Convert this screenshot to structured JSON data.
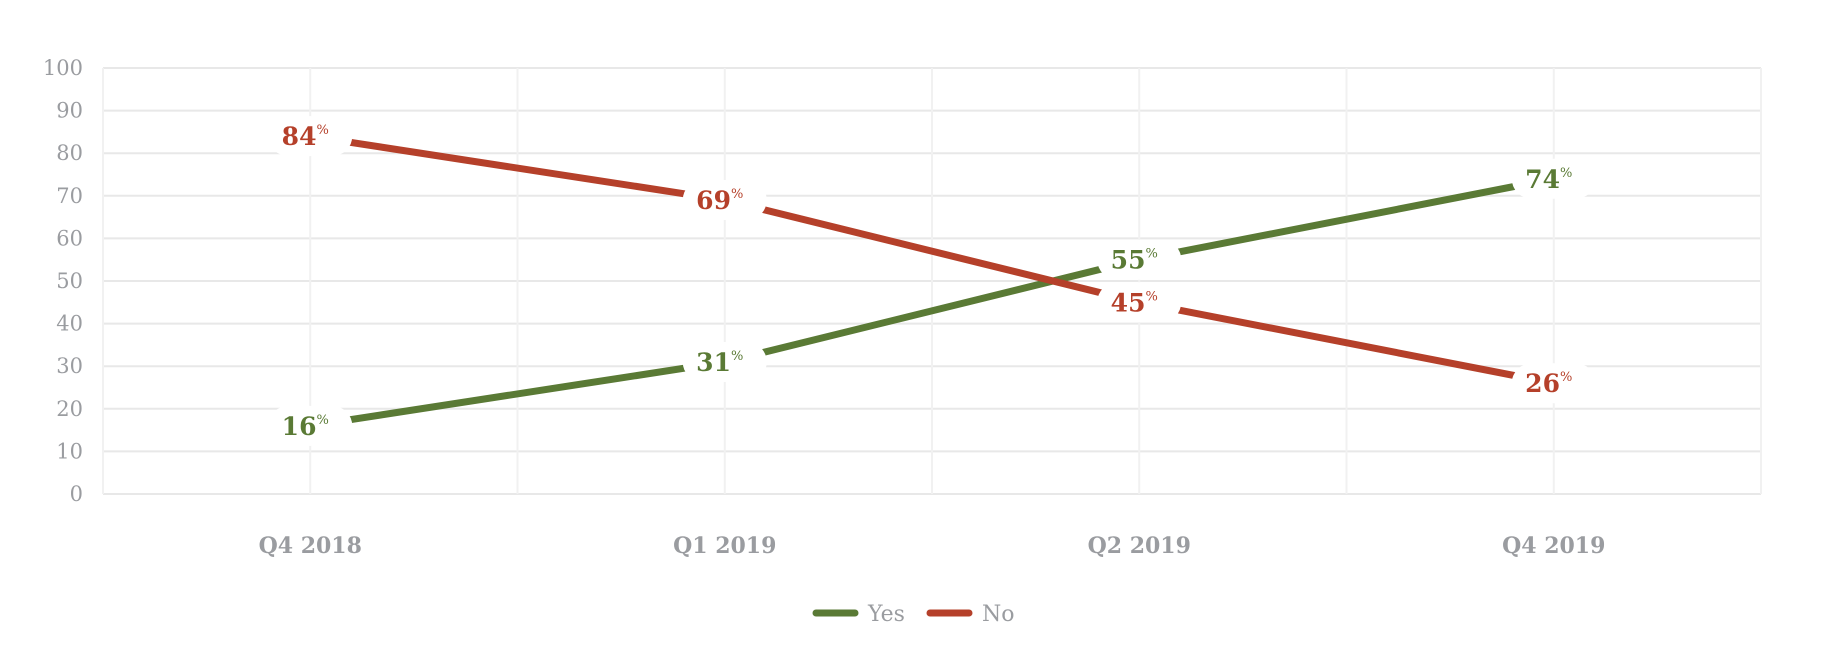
{
  "chart_data": {
    "type": "line",
    "title": "",
    "xlabel": "",
    "ylabel": "",
    "categories": [
      "Q4 2018",
      "Q1 2019",
      "Q2 2019",
      "Q4 2019"
    ],
    "ylim": [
      0,
      100
    ],
    "yticks": [
      0,
      10,
      20,
      30,
      40,
      50,
      60,
      70,
      80,
      90,
      100
    ],
    "grid": true,
    "legend_position": "bottom-center",
    "value_suffix": "%",
    "series": [
      {
        "name": "Yes",
        "color": "#5a7a35",
        "values": [
          16,
          31,
          55,
          74
        ]
      },
      {
        "name": "No",
        "color": "#b5402a",
        "values": [
          84,
          69,
          45,
          26
        ]
      }
    ]
  }
}
